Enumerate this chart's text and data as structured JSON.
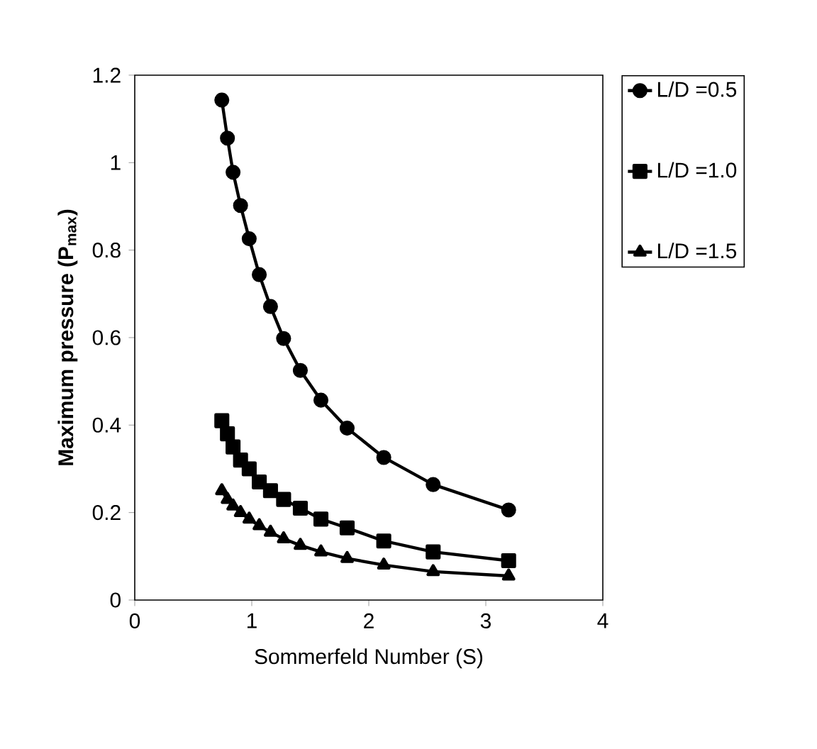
{
  "chart_data": {
    "type": "line",
    "xlabel": "Sommerfeld Number (S)",
    "ylabel": "Maximum pressure (P$_{max}$)",
    "x": [
      0.744,
      0.792,
      0.84,
      0.904,
      0.978,
      1.064,
      1.16,
      1.272,
      1.415,
      1.591,
      1.815,
      2.128,
      2.55,
      3.195
    ],
    "series": [
      {
        "name": "L/D =0.5",
        "color": "#000000",
        "marker": "circle",
        "values": [
          1.143,
          1.056,
          0.978,
          0.902,
          0.826,
          0.744,
          0.671,
          0.598,
          0.525,
          0.457,
          0.393,
          0.326,
          0.264,
          0.206
        ]
      },
      {
        "name": "L/D =1.0",
        "color": "#000000",
        "marker": "square",
        "values": [
          0.41,
          0.38,
          0.35,
          0.32,
          0.3,
          0.27,
          0.25,
          0.23,
          0.21,
          0.185,
          0.165,
          0.135,
          0.11,
          0.09
        ]
      },
      {
        "name": "L/D =1.5",
        "color": "#000000",
        "marker": "triangle",
        "values": [
          0.25,
          0.23,
          0.215,
          0.2,
          0.185,
          0.17,
          0.155,
          0.14,
          0.125,
          0.11,
          0.095,
          0.08,
          0.065,
          0.055
        ]
      }
    ],
    "xlim": [
      0,
      4
    ],
    "ylim": [
      0,
      1.2
    ],
    "xticks": [
      0,
      1,
      2,
      3,
      4
    ],
    "yticks": [
      0,
      0.2,
      0.4,
      0.6,
      0.8,
      1,
      1.2
    ],
    "grid": false,
    "legend": "right",
    "line_style": "solid"
  }
}
